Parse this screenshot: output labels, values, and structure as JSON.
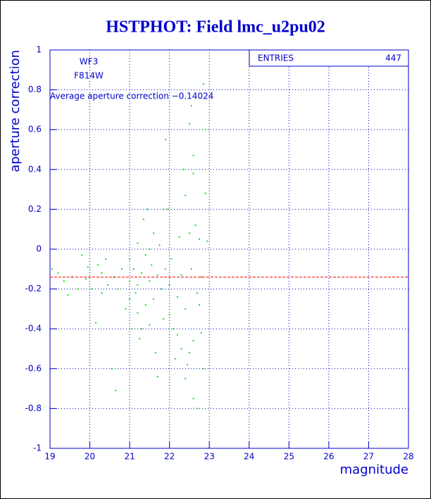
{
  "chart_data": {
    "type": "scatter",
    "title": "HSTPHOT: Field lmc_u2pu02",
    "x_label": "magnitude",
    "y_label": "aperture correction",
    "annotations": [
      "WF3",
      "F814W"
    ],
    "average": {
      "label": "Average aperture correction −0.14024",
      "value": -0.14024,
      "color": "#ff0000"
    },
    "stats": {
      "label": "ENTRIES",
      "value": 447
    },
    "xlim": [
      19,
      28
    ],
    "xticks": [
      19,
      20,
      21,
      22,
      23,
      24,
      25,
      26,
      27,
      28
    ],
    "ylim": [
      -1,
      1
    ],
    "yticks": [
      -1,
      -0.8,
      -0.6,
      -0.4,
      -0.2,
      0,
      0.2,
      0.4,
      0.6,
      0.8,
      1
    ],
    "grid": true,
    "color": "#00ee00",
    "x": [
      19.05,
      19.2,
      19.35,
      19.45,
      19.55,
      19.7,
      19.8,
      19.9,
      19.95,
      20.05,
      20.15,
      20.2,
      20.3,
      20.4,
      20.45,
      20.55,
      20.6,
      20.65,
      20.7,
      20.8,
      20.9,
      21.0,
      21.0,
      21.05,
      21.1,
      21.15,
      21.2,
      21.2,
      21.25,
      21.3,
      21.35,
      21.4,
      21.4,
      21.45,
      21.5,
      21.5,
      21.55,
      21.6,
      21.6,
      21.65,
      21.7,
      21.7,
      21.75,
      21.8,
      21.85,
      21.85,
      21.9,
      21.9,
      21.95,
      22.0,
      22.05,
      22.1,
      22.15,
      22.2,
      22.25,
      22.3,
      22.35,
      22.4,
      22.4,
      22.45,
      22.5,
      22.5,
      22.55,
      22.6,
      22.6,
      22.65,
      22.7,
      22.7,
      22.75,
      22.8,
      22.85,
      22.85,
      22.9,
      22.9,
      22.95,
      22.55,
      22.6,
      22.5,
      22.3,
      22.2,
      21.3,
      21.0,
      22.4,
      22.6,
      22.75,
      21.5,
      22.0,
      22.8,
      21.2,
      20.3
    ],
    "values": [
      -0.1,
      -0.12,
      -0.16,
      -0.23,
      -0.14,
      -0.2,
      -0.03,
      -0.15,
      -0.09,
      -0.2,
      -0.37,
      -0.08,
      -0.12,
      -0.05,
      -0.18,
      -0.6,
      -0.14,
      -0.71,
      -0.2,
      -0.1,
      -0.3,
      -0.05,
      -0.16,
      -0.4,
      -0.1,
      -0.22,
      0.03,
      -0.32,
      -0.45,
      -0.12,
      0.15,
      -0.03,
      -0.28,
      0.2,
      -0.16,
      -0.38,
      -0.08,
      0.08,
      -0.25,
      -0.52,
      -0.13,
      -0.64,
      0.02,
      -0.2,
      0.2,
      -0.35,
      0.55,
      -0.1,
      0.2,
      -0.18,
      -0.05,
      -0.4,
      -0.55,
      -0.43,
      0.06,
      -0.5,
      0.4,
      0.27,
      -0.3,
      -0.58,
      0.08,
      -0.52,
      -0.1,
      0.38,
      -0.75,
      0.12,
      -0.22,
      -0.8,
      0.05,
      -0.42,
      0.83,
      -0.6,
      0.6,
      0.28,
      0.04,
      0.72,
      0.47,
      0.63,
      -0.13,
      -0.24,
      -0.4,
      -0.25,
      -0.65,
      -0.46,
      -0.28,
      0.0,
      -0.33,
      -0.14,
      -0.18,
      -0.22
    ]
  }
}
